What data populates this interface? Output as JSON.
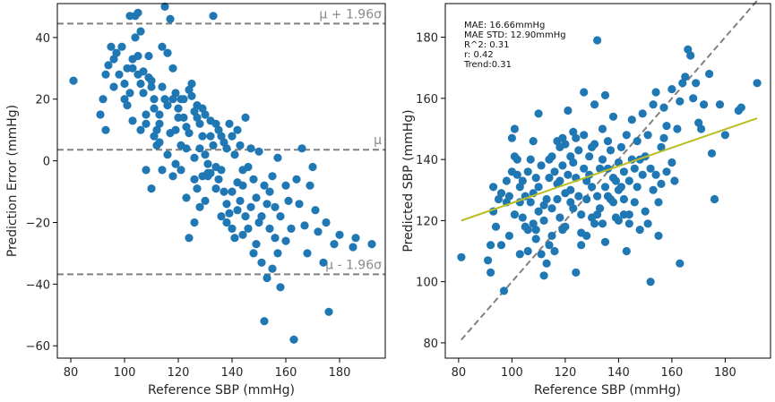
{
  "chart_data": [
    {
      "type": "scatter",
      "xlabel": "Reference SBP (mmHg)",
      "ylabel": "Prediction Error (mmHg)",
      "xlim": [
        75,
        197
      ],
      "ylim": [
        -64,
        51
      ],
      "xticks": [
        80,
        100,
        120,
        140,
        160,
        180
      ],
      "yticks": [
        -60,
        -40,
        -20,
        0,
        20,
        40
      ],
      "reference_lines": [
        {
          "name": "upper",
          "label": "μ + 1.96σ",
          "y": 44.5
        },
        {
          "name": "mean",
          "label": "μ",
          "y": 3.6
        },
        {
          "name": "lower",
          "label": "μ - 1.96σ",
          "y": -36.8
        }
      ],
      "points": [
        [
          81,
          26
        ],
        [
          91,
          15
        ],
        [
          92,
          20
        ],
        [
          93,
          10
        ],
        [
          93,
          28
        ],
        [
          94,
          31
        ],
        [
          95,
          37
        ],
        [
          96,
          33
        ],
        [
          97,
          35
        ],
        [
          98,
          28
        ],
        [
          99,
          37
        ],
        [
          100,
          25
        ],
        [
          100,
          20
        ],
        [
          101,
          30
        ],
        [
          101,
          18
        ],
        [
          102,
          47
        ],
        [
          102,
          22
        ],
        [
          103,
          30
        ],
        [
          104,
          47
        ],
        [
          104,
          40
        ],
        [
          105,
          48
        ],
        [
          105,
          34
        ],
        [
          105,
          28
        ],
        [
          106,
          25
        ],
        [
          106,
          42
        ],
        [
          107,
          29
        ],
        [
          107,
          22
        ],
        [
          108,
          15
        ],
        [
          108,
          12
        ],
        [
          109,
          27
        ],
        [
          110,
          26
        ],
        [
          110,
          24
        ],
        [
          111,
          20
        ],
        [
          111,
          17
        ],
        [
          112,
          10
        ],
        [
          112,
          5
        ],
        [
          113,
          15
        ],
        [
          113,
          12
        ],
        [
          114,
          37
        ],
        [
          114,
          24
        ],
        [
          115,
          50
        ],
        [
          115,
          20
        ],
        [
          116,
          35
        ],
        [
          116,
          18
        ],
        [
          117,
          46
        ],
        [
          117,
          9
        ],
        [
          118,
          30
        ],
        [
          118,
          20
        ],
        [
          119,
          22
        ],
        [
          119,
          10
        ],
        [
          120,
          17
        ],
        [
          120,
          14
        ],
        [
          121,
          20
        ],
        [
          121,
          -3
        ],
        [
          122,
          20
        ],
        [
          122,
          14
        ],
        [
          123,
          11
        ],
        [
          123,
          4
        ],
        [
          124,
          23
        ],
        [
          124,
          9
        ],
        [
          125,
          25
        ],
        [
          125,
          21
        ],
        [
          126,
          16
        ],
        [
          126,
          -6
        ],
        [
          127,
          18
        ],
        [
          127,
          14
        ],
        [
          128,
          12
        ],
        [
          128,
          4
        ],
        [
          129,
          17
        ],
        [
          129,
          8
        ],
        [
          130,
          15
        ],
        [
          130,
          2
        ],
        [
          131,
          -1
        ],
        [
          131,
          -5
        ],
        [
          132,
          13
        ],
        [
          132,
          8
        ],
        [
          133,
          47
        ],
        [
          133,
          5
        ],
        [
          134,
          12
        ],
        [
          134,
          -2
        ],
        [
          135,
          10
        ],
        [
          135,
          -6
        ],
        [
          136,
          8
        ],
        [
          136,
          -3
        ],
        [
          137,
          6
        ],
        [
          137,
          -10
        ],
        [
          138,
          4
        ],
        [
          138,
          -14
        ],
        [
          139,
          12
        ],
        [
          139,
          -17
        ],
        [
          140,
          8
        ],
        [
          140,
          -22
        ],
        [
          141,
          2
        ],
        [
          141,
          -25
        ],
        [
          142,
          10
        ],
        [
          142,
          -7
        ],
        [
          143,
          5
        ],
        [
          143,
          -13
        ],
        [
          144,
          -3
        ],
        [
          144,
          -8
        ],
        [
          145,
          14
        ],
        [
          145,
          -18
        ],
        [
          146,
          -2
        ],
        [
          146,
          -22
        ],
        [
          147,
          4
        ],
        [
          147,
          -15
        ],
        [
          148,
          -6
        ],
        [
          148,
          -30
        ],
        [
          149,
          -12
        ],
        [
          149,
          -27
        ],
        [
          150,
          3
        ],
        [
          150,
          -20
        ],
        [
          151,
          -18
        ],
        [
          151,
          -33
        ],
        [
          152,
          -8
        ],
        [
          152,
          -52
        ],
        [
          153,
          -38
        ],
        [
          153,
          -14
        ],
        [
          154,
          -22
        ],
        [
          154,
          -10
        ],
        [
          155,
          -5
        ],
        [
          155,
          -35
        ],
        [
          156,
          -25
        ],
        [
          156,
          -15
        ],
        [
          157,
          1
        ],
        [
          157,
          -30
        ],
        [
          158,
          -41
        ],
        [
          158,
          -18
        ],
        [
          160,
          -8
        ],
        [
          160,
          -26
        ],
        [
          161,
          -13
        ],
        [
          162,
          -22
        ],
        [
          163,
          -58
        ],
        [
          164,
          -6
        ],
        [
          165,
          -14
        ],
        [
          166,
          4
        ],
        [
          167,
          -21
        ],
        [
          168,
          -30
        ],
        [
          169,
          -8
        ],
        [
          170,
          -2
        ],
        [
          171,
          -16
        ],
        [
          172,
          -23
        ],
        [
          174,
          -33
        ],
        [
          175,
          -20
        ],
        [
          176,
          -49
        ],
        [
          178,
          -27
        ],
        [
          180,
          -24
        ],
        [
          185,
          -28
        ],
        [
          186,
          -25
        ],
        [
          192,
          -27
        ],
        [
          96,
          24
        ],
        [
          103,
          33
        ],
        [
          106,
          10
        ],
        [
          109,
          34
        ],
        [
          111,
          8
        ],
        [
          113,
          6
        ],
        [
          119,
          -1
        ],
        [
          121,
          5
        ],
        [
          123,
          -12
        ],
        [
          126,
          1
        ],
        [
          127,
          -9
        ],
        [
          128,
          -15
        ],
        [
          130,
          -13
        ],
        [
          132,
          -4
        ],
        [
          134,
          -9
        ],
        [
          136,
          -18
        ],
        [
          138,
          -20
        ],
        [
          140,
          -10
        ],
        [
          142,
          -16
        ],
        [
          144,
          -24
        ],
        [
          103,
          13
        ],
        [
          108,
          -3
        ],
        [
          110,
          -9
        ],
        [
          114,
          -3
        ],
        [
          116,
          2
        ],
        [
          118,
          -5
        ],
        [
          124,
          -25
        ],
        [
          126,
          -20
        ],
        [
          129,
          -5
        ],
        [
          131,
          -4
        ]
      ]
    },
    {
      "type": "scatter",
      "xlabel": "Reference SBP (mmHg)",
      "ylabel": "Predicted SBP (mmHg)",
      "xlim": [
        75,
        197
      ],
      "ylim": [
        75,
        191
      ],
      "xticks": [
        80,
        100,
        120,
        140,
        160,
        180
      ],
      "yticks": [
        80,
        100,
        120,
        140,
        160,
        180
      ],
      "metrics": [
        "MAE: 16.66mmHg",
        "MAE STD: 12.90mmHg",
        "R^2: 0.31",
        "r: 0.42",
        "Trend:0.31"
      ],
      "identity_line": [
        [
          81,
          81
        ],
        [
          192,
          192
        ]
      ],
      "trend_line": [
        [
          81,
          120
        ],
        [
          192,
          153.5
        ]
      ],
      "points": [
        [
          81,
          108
        ],
        [
          91,
          107
        ],
        [
          92,
          103
        ],
        [
          92,
          112
        ],
        [
          93,
          123
        ],
        [
          93,
          131
        ],
        [
          94,
          118
        ],
        [
          95,
          127
        ],
        [
          96,
          129
        ],
        [
          97,
          97
        ],
        [
          98,
          126
        ],
        [
          98,
          133
        ],
        [
          99,
          115
        ],
        [
          99,
          128
        ],
        [
          100,
          136
        ],
        [
          100,
          147
        ],
        [
          101,
          150
        ],
        [
          101,
          122
        ],
        [
          102,
          135
        ],
        [
          102,
          140
        ],
        [
          103,
          126
        ],
        [
          103,
          131
        ],
        [
          104,
          121
        ],
        [
          104,
          133
        ],
        [
          105,
          118
        ],
        [
          105,
          128
        ],
        [
          106,
          110
        ],
        [
          106,
          136
        ],
        [
          107,
          126
        ],
        [
          107,
          140
        ],
        [
          108,
          119
        ],
        [
          108,
          129
        ],
        [
          109,
          134
        ],
        [
          109,
          117
        ],
        [
          110,
          123
        ],
        [
          110,
          131
        ],
        [
          111,
          109
        ],
        [
          111,
          138
        ],
        [
          112,
          120
        ],
        [
          112,
          125
        ],
        [
          113,
          106
        ],
        [
          113,
          127
        ],
        [
          114,
          134
        ],
        [
          114,
          140
        ],
        [
          115,
          115
        ],
        [
          115,
          124
        ],
        [
          116,
          110
        ],
        [
          116,
          136
        ],
        [
          117,
          127
        ],
        [
          117,
          146
        ],
        [
          118,
          121
        ],
        [
          118,
          133
        ],
        [
          119,
          117
        ],
        [
          119,
          138
        ],
        [
          120,
          129
        ],
        [
          120,
          145
        ],
        [
          121,
          156
        ],
        [
          121,
          135
        ],
        [
          122,
          130
        ],
        [
          122,
          141
        ],
        [
          123,
          124
        ],
        [
          123,
          139
        ],
        [
          124,
          134
        ],
        [
          124,
          147
        ],
        [
          125,
          128
        ],
        [
          125,
          143
        ],
        [
          126,
          116
        ],
        [
          126,
          122
        ],
        [
          127,
          137
        ],
        [
          127,
          148
        ],
        [
          128,
          127
        ],
        [
          128,
          133
        ],
        [
          129,
          135
        ],
        [
          129,
          141
        ],
        [
          130,
          121
        ],
        [
          130,
          131
        ],
        [
          131,
          119
        ],
        [
          131,
          145
        ],
        [
          132,
          179
        ],
        [
          132,
          128
        ],
        [
          133,
          124
        ],
        [
          133,
          137
        ],
        [
          134,
          140
        ],
        [
          134,
          150
        ],
        [
          135,
          113
        ],
        [
          135,
          131
        ],
        [
          136,
          137
        ],
        [
          136,
          146
        ],
        [
          137,
          127
        ],
        [
          137,
          143
        ],
        [
          138,
          134
        ],
        [
          138,
          154
        ],
        [
          139,
          121
        ],
        [
          139,
          133
        ],
        [
          140,
          139
        ],
        [
          140,
          120
        ],
        [
          141,
          131
        ],
        [
          141,
          144
        ],
        [
          142,
          122
        ],
        [
          142,
          136
        ],
        [
          143,
          110
        ],
        [
          143,
          148
        ],
        [
          144,
          119
        ],
        [
          144,
          133
        ],
        [
          145,
          140
        ],
        [
          145,
          153
        ],
        [
          146,
          126
        ],
        [
          146,
          137
        ],
        [
          147,
          131
        ],
        [
          147,
          146
        ],
        [
          148,
          140
        ],
        [
          148,
          117
        ],
        [
          149,
          135
        ],
        [
          149,
          155
        ],
        [
          150,
          123
        ],
        [
          150,
          141
        ],
        [
          151,
          119
        ],
        [
          151,
          148
        ],
        [
          152,
          100
        ],
        [
          152,
          137
        ],
        [
          153,
          130
        ],
        [
          153,
          158
        ],
        [
          154,
          135
        ],
        [
          154,
          162
        ],
        [
          155,
          115
        ],
        [
          155,
          126
        ],
        [
          156,
          144
        ],
        [
          156,
          132
        ],
        [
          157,
          147
        ],
        [
          157,
          157
        ],
        [
          158,
          136
        ],
        [
          158,
          151
        ],
        [
          160,
          139
        ],
        [
          160,
          163
        ],
        [
          161,
          133
        ],
        [
          162,
          150
        ],
        [
          163,
          106
        ],
        [
          163,
          159
        ],
        [
          164,
          165
        ],
        [
          165,
          167
        ],
        [
          166,
          176
        ],
        [
          167,
          174
        ],
        [
          168,
          160
        ],
        [
          169,
          165
        ],
        [
          170,
          152
        ],
        [
          171,
          150
        ],
        [
          172,
          158
        ],
        [
          174,
          168
        ],
        [
          175,
          142
        ],
        [
          176,
          127
        ],
        [
          178,
          158
        ],
        [
          180,
          148
        ],
        [
          185,
          156
        ],
        [
          186,
          157
        ],
        [
          192,
          165
        ],
        [
          96,
          112
        ],
        [
          103,
          109
        ],
        [
          106,
          117
        ],
        [
          109,
          114
        ],
        [
          112,
          102
        ],
        [
          114,
          112
        ],
        [
          118,
          144
        ],
        [
          120,
          118
        ],
        [
          122,
          126
        ],
        [
          124,
          103
        ],
        [
          126,
          112
        ],
        [
          128,
          115
        ],
        [
          130,
          144
        ],
        [
          132,
          122
        ],
        [
          134,
          119
        ],
        [
          136,
          128
        ],
        [
          138,
          126
        ],
        [
          140,
          130
        ],
        [
          142,
          127
        ],
        [
          144,
          122
        ],
        [
          101,
          141
        ],
        [
          108,
          146
        ],
        [
          110,
          155
        ],
        [
          115,
          141
        ],
        [
          117,
          132
        ],
        [
          119,
          147
        ],
        [
          123,
          149
        ],
        [
          127,
          162
        ],
        [
          131,
          158
        ],
        [
          135,
          161
        ]
      ]
    }
  ]
}
